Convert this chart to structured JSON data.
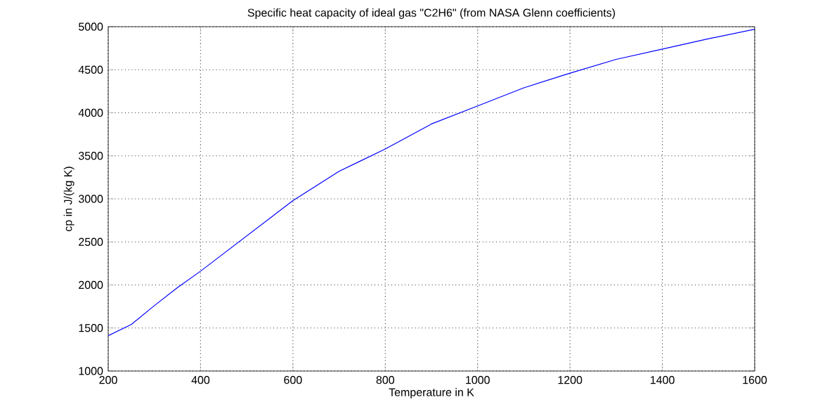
{
  "chart_data": {
    "type": "line",
    "title": "Specific heat capacity of ideal gas \"C2H6\" (from NASA Glenn coefficients)",
    "xlabel": "Temperature in K",
    "ylabel": "cp in J/(kg K)",
    "x": [
      200,
      250,
      300,
      350,
      400,
      500,
      600,
      700,
      800,
      900,
      1000,
      1100,
      1200,
      1300,
      1400,
      1500,
      1600
    ],
    "series": [
      {
        "color": "#0000ff",
        "values": [
          1410,
          1540,
          1760,
          1970,
          2160,
          2570,
          2980,
          3320,
          3580,
          3870,
          4080,
          4290,
          4460,
          4620,
          4740,
          4860,
          4970
        ]
      }
    ],
    "xlim": [
      200,
      1600
    ],
    "ylim": [
      1000,
      5000
    ],
    "xticks": [
      200,
      400,
      600,
      800,
      1000,
      1200,
      1400,
      1600
    ],
    "yticks": [
      1000,
      1500,
      2000,
      2500,
      3000,
      3500,
      4000,
      4500,
      5000
    ],
    "grid": true,
    "marker": "none",
    "line_style": "solid"
  }
}
